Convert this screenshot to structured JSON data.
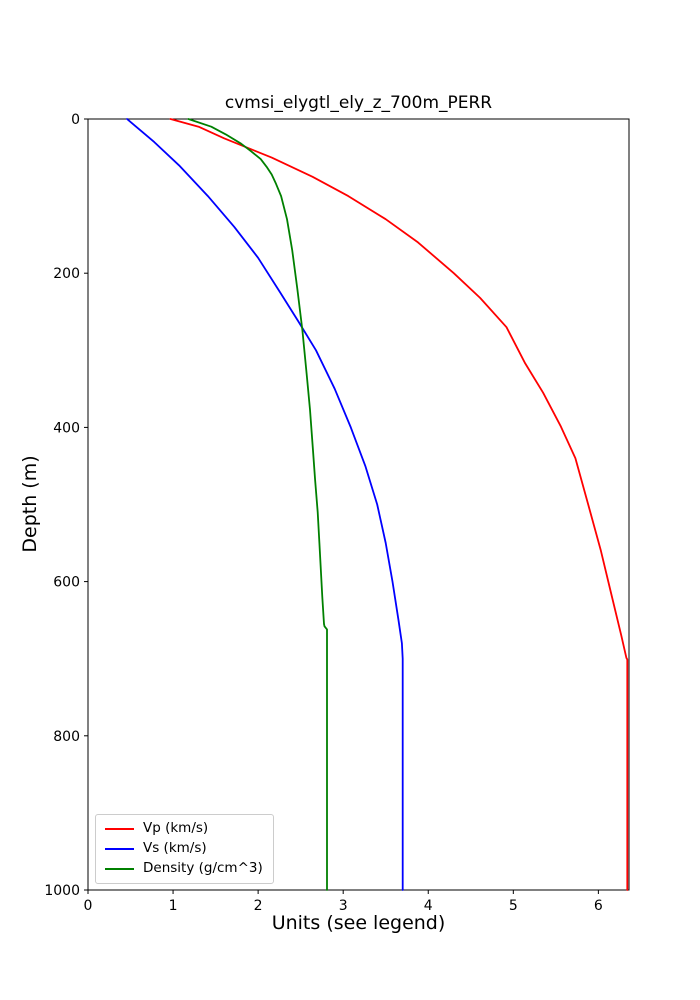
{
  "chart_data": {
    "type": "line",
    "title": "cvmsi_elygtl_ely_z_700m_PERR",
    "xlabel": "Units (see legend)",
    "ylabel": "Depth (m)",
    "xlim": [
      0,
      6.36
    ],
    "ylim": [
      0,
      1000
    ],
    "y_axis_inverted_depth_down": true,
    "grid": false,
    "legend_position": "lower left",
    "x_ticks": [
      0,
      1,
      2,
      3,
      4,
      5,
      6
    ],
    "y_ticks": [
      0,
      200,
      400,
      600,
      800,
      1000
    ],
    "axis_color": "#000000",
    "background_color": "#ffffff",
    "series": [
      {
        "name": "Vp (km/s)",
        "color": "#ff0000",
        "points_value_depth": [
          [
            0.97,
            0
          ],
          [
            1.3,
            10
          ],
          [
            1.6,
            25
          ],
          [
            2.16,
            50
          ],
          [
            2.64,
            75
          ],
          [
            3.06,
            100
          ],
          [
            3.5,
            130
          ],
          [
            3.88,
            160
          ],
          [
            4.3,
            200
          ],
          [
            4.61,
            232
          ],
          [
            4.92,
            270
          ],
          [
            5.14,
            317
          ],
          [
            5.35,
            355
          ],
          [
            5.56,
            399
          ],
          [
            5.73,
            440
          ],
          [
            5.88,
            500
          ],
          [
            6.03,
            560
          ],
          [
            6.16,
            620
          ],
          [
            6.27,
            670
          ],
          [
            6.33,
            699
          ],
          [
            6.34,
            701
          ],
          [
            6.34,
            1000
          ]
        ]
      },
      {
        "name": "Vs (km/s)",
        "color": "#0000ff",
        "points_value_depth": [
          [
            0.46,
            0
          ],
          [
            0.62,
            15
          ],
          [
            0.78,
            30
          ],
          [
            1.07,
            60
          ],
          [
            1.41,
            100
          ],
          [
            1.72,
            140
          ],
          [
            2.0,
            180
          ],
          [
            2.26,
            225
          ],
          [
            2.47,
            262
          ],
          [
            2.68,
            300
          ],
          [
            2.9,
            350
          ],
          [
            3.09,
            400
          ],
          [
            3.26,
            450
          ],
          [
            3.4,
            500
          ],
          [
            3.5,
            550
          ],
          [
            3.58,
            600
          ],
          [
            3.65,
            650
          ],
          [
            3.69,
            680
          ],
          [
            3.7,
            700
          ],
          [
            3.7,
            1000
          ]
        ]
      },
      {
        "name": "Density (g/cm^3)",
        "color": "#008000",
        "points_value_depth": [
          [
            1.18,
            0
          ],
          [
            1.45,
            10
          ],
          [
            1.62,
            20
          ],
          [
            1.8,
            32
          ],
          [
            1.92,
            42
          ],
          [
            2.03,
            52
          ],
          [
            2.1,
            62
          ],
          [
            2.16,
            72
          ],
          [
            2.21,
            84
          ],
          [
            2.27,
            100
          ],
          [
            2.34,
            130
          ],
          [
            2.4,
            170
          ],
          [
            2.46,
            220
          ],
          [
            2.52,
            274
          ],
          [
            2.57,
            330
          ],
          [
            2.61,
            377
          ],
          [
            2.645,
            430
          ],
          [
            2.67,
            468
          ],
          [
            2.7,
            510
          ],
          [
            2.72,
            550
          ],
          [
            2.755,
            620
          ],
          [
            2.775,
            655
          ],
          [
            2.78,
            658
          ],
          [
            2.81,
            662
          ],
          [
            2.81,
            1000
          ]
        ]
      }
    ]
  }
}
